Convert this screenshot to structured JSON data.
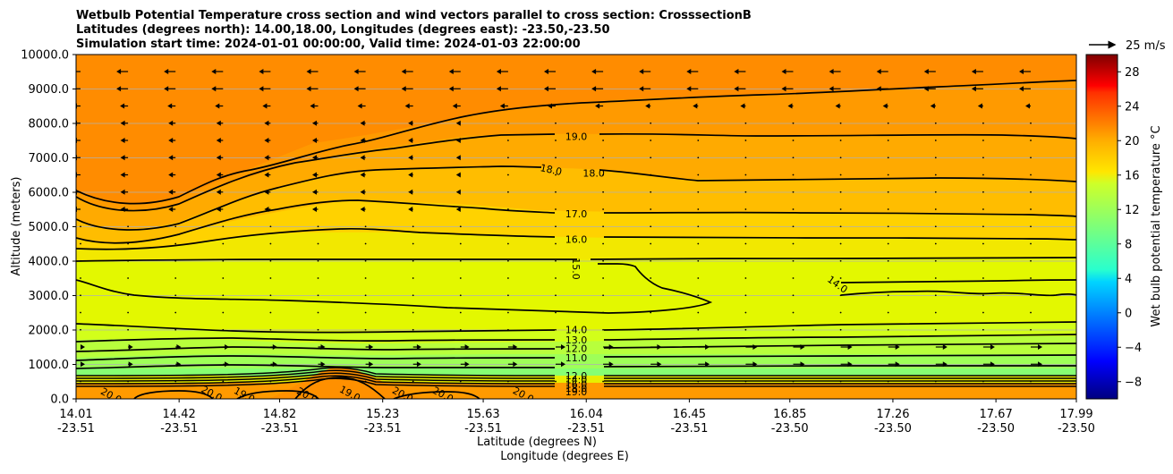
{
  "chart_data": {
    "type": "contour",
    "title_lines": [
      "Wetbulb Potential Temperature cross section and wind vectors parallel to cross section: CrosssectionB",
      "Latitudes (degrees north): 14.00,18.00, Longitudes (degrees east): -23.50,-23.50",
      "Simulation start time: 2024-01-01 00:00:00, Valid time: 2024-01-03 22:00:00"
    ],
    "ylabel": "Altitude (meters)",
    "xlabel_lines": [
      "Latitude (degrees N)",
      "Longitude (degrees E)"
    ],
    "ylim": [
      0,
      10000
    ],
    "yticks": [
      "0.0",
      "1000.0",
      "2000.0",
      "3000.0",
      "4000.0",
      "5000.0",
      "6000.0",
      "7000.0",
      "8000.0",
      "9000.0",
      "10000.0"
    ],
    "xticks": [
      {
        "lat": "14.01",
        "lon": "-23.51"
      },
      {
        "lat": "14.42",
        "lon": "-23.51"
      },
      {
        "lat": "14.82",
        "lon": "-23.51"
      },
      {
        "lat": "15.23",
        "lon": "-23.51"
      },
      {
        "lat": "15.63",
        "lon": "-23.51"
      },
      {
        "lat": "16.04",
        "lon": "-23.51"
      },
      {
        "lat": "16.45",
        "lon": "-23.51"
      },
      {
        "lat": "16.85",
        "lon": "-23.50"
      },
      {
        "lat": "17.26",
        "lon": "-23.50"
      },
      {
        "lat": "17.67",
        "lon": "-23.50"
      },
      {
        "lat": "17.99",
        "lon": "-23.50"
      }
    ],
    "grid": "horizontal",
    "colorbar": {
      "label": "Wet bulb potential temperature °C",
      "ticks": [
        "−8",
        "−4",
        "0",
        "4",
        "8",
        "12",
        "16",
        "20",
        "24",
        "28"
      ],
      "range": [
        -10,
        30
      ],
      "colormap": "jet"
    },
    "quiver_key": "25 m/s",
    "contour_labels": [
      {
        "text": "19.0",
        "lat": 16.0,
        "alt": 7620
      },
      {
        "text": "18.0",
        "lat": 15.9,
        "alt": 6660
      },
      {
        "text": "18.0",
        "lat": 16.07,
        "alt": 6560
      },
      {
        "text": "17.0",
        "lat": 16.0,
        "alt": 5380
      },
      {
        "text": "16.0",
        "lat": 16.0,
        "alt": 4630
      },
      {
        "text": "15.0",
        "lat": 16.0,
        "alt": 3780
      },
      {
        "text": "14.0",
        "lat": 17.04,
        "alt": 3330
      },
      {
        "text": "14.0",
        "lat": 16.0,
        "alt": 2010
      },
      {
        "text": "13.0",
        "lat": 16.0,
        "alt": 1720
      },
      {
        "text": "12.0",
        "lat": 16.0,
        "alt": 1470
      },
      {
        "text": "11.0",
        "lat": 16.0,
        "alt": 1190
      },
      {
        "text": "12.0",
        "lat": 16.0,
        "alt": 680
      },
      {
        "text": "14.0",
        "lat": 16.0,
        "alt": 560
      },
      {
        "text": "16.0",
        "lat": 16.0,
        "alt": 430
      },
      {
        "text": "18.0",
        "lat": 16.0,
        "alt": 310
      },
      {
        "text": "19.0",
        "lat": 16.0,
        "alt": 210
      },
      {
        "text": "20.0",
        "lat": 14.15,
        "alt": 100
      },
      {
        "text": "20.0",
        "lat": 14.55,
        "alt": 160
      },
      {
        "text": "19.0",
        "lat": 14.68,
        "alt": 120
      },
      {
        "text": "20.0",
        "lat": 14.93,
        "alt": 110
      },
      {
        "text": "19.0",
        "lat": 15.1,
        "alt": 160
      },
      {
        "text": "20.0",
        "lat": 15.31,
        "alt": 130
      },
      {
        "text": "20.0",
        "lat": 15.47,
        "alt": 130
      },
      {
        "text": "20.0",
        "lat": 15.79,
        "alt": 120
      }
    ]
  }
}
